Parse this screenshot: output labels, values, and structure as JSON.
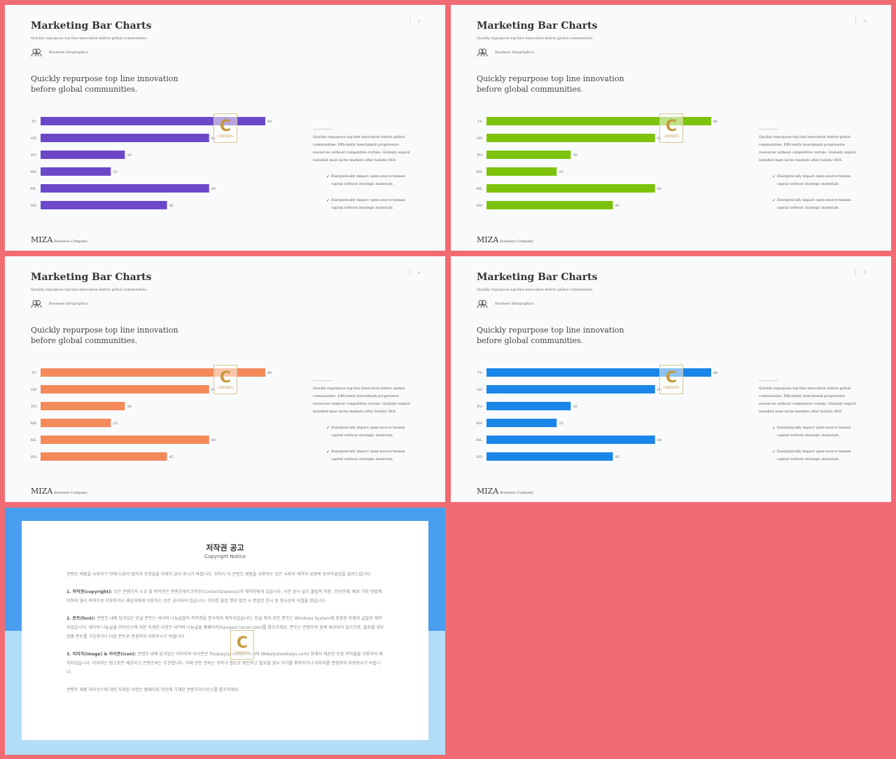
{
  "slides": [
    {
      "title": "Marketing Bar Charts",
      "subtitle": "Quickly repurpose top-line innovation before global communities.",
      "tag": "Business Infographics",
      "page": "2",
      "headline": "Quickly repurpose top line innovation before global communities.",
      "paragraph": "Quickly repurpose top-line innovation before global communities. Efficiently benchmark progressive resources without competitive vortals. Globally exploit installed base niche markets after holistic ROI.",
      "check1": "Energistically impact open-source human capital without strategic materials.",
      "check2": "Energistically impact open-source human capital without strategic materials.",
      "logo": "MIZA",
      "logo_sub": "Business Company",
      "color": "#6c48c9"
    },
    {
      "title": "Marketing Bar Charts",
      "subtitle": "Quickly repurpose top-line innovation before global communities.",
      "tag": "Business Infographics",
      "page": "3",
      "headline": "Quickly repurpose top line innovation before global communities.",
      "paragraph": "Quickly repurpose top-line innovation before global communities. Efficiently benchmark progressive resources without competitive vortals. Globally exploit installed base niche markets after holistic ROI.",
      "check1": "Energistically impact open-source human capital without strategic materials.",
      "check2": "Energistically impact open-source human capital without strategic materials.",
      "logo": "MIZA",
      "logo_sub": "Business Company",
      "color": "#7dc30b"
    },
    {
      "title": "Marketing Bar Charts",
      "subtitle": "Quickly repurpose top-line innovation before global communities.",
      "tag": "Business Infographics",
      "page": "4",
      "headline": "Quickly repurpose top line innovation before global communities.",
      "paragraph": "Quickly repurpose top-line innovation before global communities. Efficiently benchmark progressive resources without competitive vortals. Globally exploit installed base niche markets after holistic ROI.",
      "check1": "Energistically impact open-source human capital without strategic materials.",
      "check2": "Energistically impact open-source human capital without strategic materials.",
      "logo": "MIZA",
      "logo_sub": "Business Company",
      "color": "#f4895a"
    },
    {
      "title": "Marketing Bar Charts",
      "subtitle": "Quickly repurpose top-line innovation before global communities.",
      "tag": "Business Infographics",
      "page": "5",
      "headline": "Quickly repurpose top line innovation before global communities.",
      "paragraph": "Quickly repurpose top-line innovation before global communities. Efficiently benchmark progressive resources without competitive vortals. Globally exploit installed base niche markets after holistic ROI.",
      "check1": "Energistically impact open-source human capital without strategic materials.",
      "check2": "Energistically impact open-source human capital without strategic materials.",
      "logo": "MIZA",
      "logo_sub": "Business Company",
      "color": "#1a86e8"
    }
  ],
  "chart_data": [
    {
      "type": "bar",
      "orientation": "horizontal",
      "categories": [
        "TV",
        "GD",
        "PO",
        "NH",
        "ML",
        "HD"
      ],
      "values": [
        80,
        60,
        30,
        25,
        60,
        45
      ],
      "xlim": [
        0,
        80
      ],
      "color": "#6c48c9"
    },
    {
      "type": "bar",
      "orientation": "horizontal",
      "categories": [
        "TV",
        "GD",
        "PO",
        "NH",
        "ML",
        "HD"
      ],
      "values": [
        80,
        60,
        30,
        25,
        60,
        45
      ],
      "xlim": [
        0,
        80
      ],
      "color": "#7dc30b"
    },
    {
      "type": "bar",
      "orientation": "horizontal",
      "categories": [
        "TV",
        "GD",
        "PO",
        "NH",
        "ML",
        "HD"
      ],
      "values": [
        80,
        60,
        30,
        25,
        60,
        45
      ],
      "xlim": [
        0,
        80
      ],
      "color": "#f4895a"
    },
    {
      "type": "bar",
      "orientation": "horizontal",
      "categories": [
        "TV",
        "GD",
        "PO",
        "NH",
        "ML",
        "HD"
      ],
      "values": [
        80,
        60,
        30,
        25,
        60,
        45
      ],
      "xlim": [
        0,
        80
      ],
      "color": "#1a86e8"
    }
  ],
  "watermark": {
    "letter": "C",
    "text": "CONTENTS"
  },
  "copyright": {
    "title": "저작권 공고",
    "subtitle": "Copyright Notice",
    "intro": "콘텐츠 제품을 사용하기 전에 다음의 협약과 조항들을 자세히 읽어 주시기 바랍니다. 귀하가 이 콘텐츠 제품을 사용하는 것은 사용자 계약과 보증에 동의하셨음을 알려드립니다.",
    "s1_head": "1. 저작권(copyright):",
    "s1_body": "모든 콘텐츠의 소유 및 저작권은 콘텐츠테이크아웃(Contentstakeout)과 제작자에게 있습니다. 사전 승낙 없이 불법적 이용, 무단전재, 배포 기타 방법에 의하여 영리 목적으로 이용하거나 제삼자에게 이용하는 것은 금지되어 있습니다. 이러한 불법 행위 발견 시 준엄한 민사 및 형사상의 처벌을 받습니다.",
    "s2_head": "2. 폰트(font):",
    "s2_body": "콘텐츠 내에 담겨있는 한글 폰트는 네이버 나눔글꼴의 저작권을 준수하여 제작되었습니다. 한글 외의 모든 폰트는 Windows System에 포함된 자체의 글꼴로 제작되었습니다. 네이버 나눔글꼴 라이선스에 대한 자세한 사항은 네이버 나눔글꼴 홈페이지(hangeul.naver.com)를 참조하세요. 폰트는 콘텐츠와 함께 제공되지 않으므로, 필요할 경우 정품 폰트를 구입하거나 다른 폰트로 변경하여 사용하시기 바랍니다.",
    "s3_head": "3. 이미지(image) & 아이콘(icon):",
    "s3_body": "콘텐츠 내에 담겨있는 이미지와 아이콘은 Pixabay(pixabay.com)와 Webalys(webalys.com) 등에서 제공한 무료 저작물을 이용하여 제작되었습니다. 이미지는 참고로만 제공되고 콘텐츠와는 무관합니다. 이에 관한 권리는 귀하가 별도로 확인하고 필요할 경우 허가를 취득하거나 이미지를 변경하여 사용하시기 바랍니다.",
    "outro": "콘텐츠 제품 라이선스에 대한 자세한 사항은 홈페이지 하단에 기재한 콘텐츠라이선스를 참조하세요."
  }
}
